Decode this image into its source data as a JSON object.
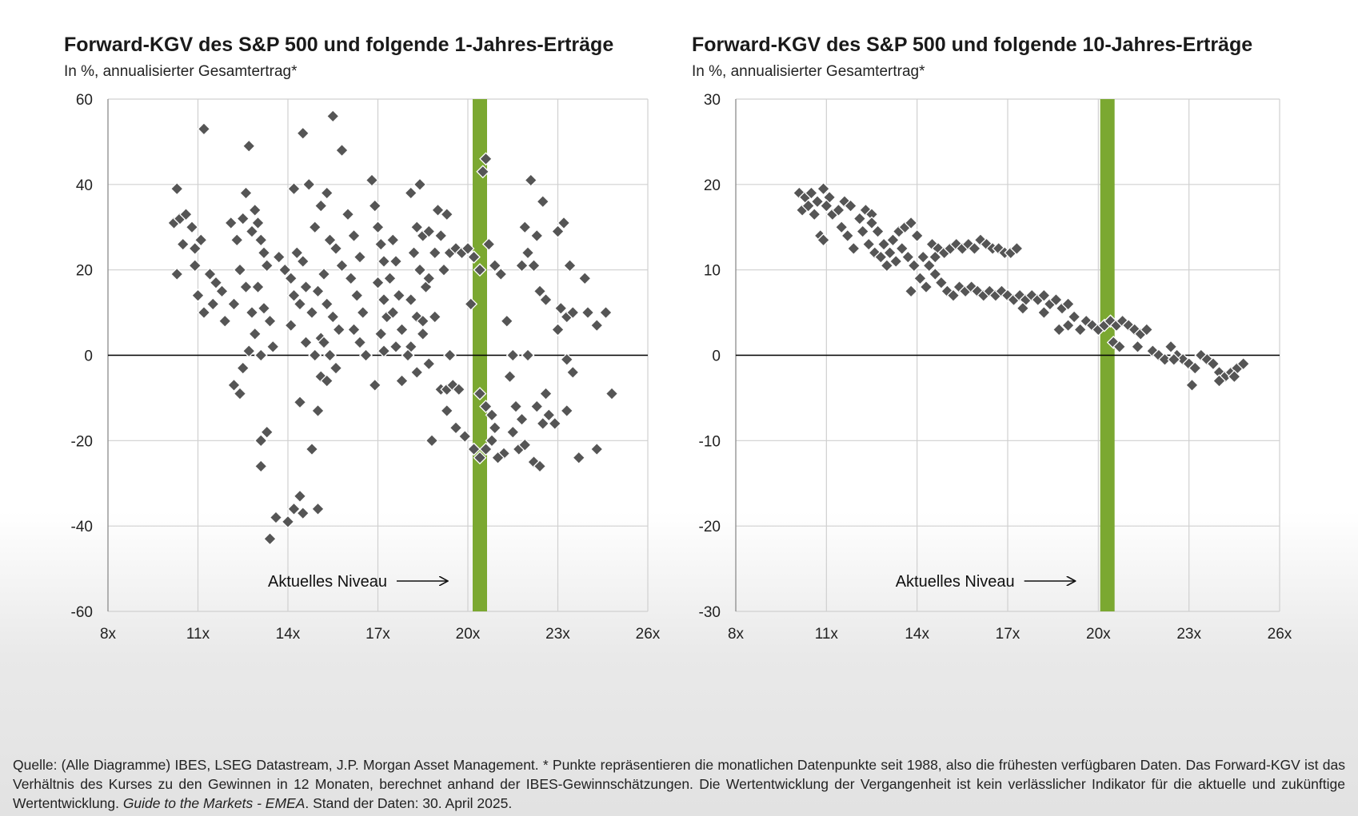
{
  "charts": [
    {
      "title": "Forward-KGV des S&P 500 und folgende 1-Jahres-Erträge",
      "subtitle": "In %, annualisierter Gesamtertrag*",
      "annotation": "Aktuelles Niveau"
    },
    {
      "title": "Forward-KGV des S&P 500 und folgende 10-Jahres-Erträge",
      "subtitle": "In %, annualisierter Gesamtertrag*",
      "annotation": "Aktuelles Niveau"
    }
  ],
  "footnote": {
    "part1": "Quelle: (Alle Diagramme) IBES, LSEG Datastream, J.P. Morgan Asset Management. * Punkte repräsentieren die monatlichen Datenpunkte seit 1988, also die frühesten verfügbaren Daten. Das Forward-KGV ist das Verhältnis des Kurses zu den Gewinnen in 12 Monaten, berechnet anhand der IBES-Gewinnschätzungen. Die Wertentwicklung der Vergangenheit ist kein verlässlicher Indikator für die aktuelle und zukünftige Wertentwicklung.",
    "guide": "Guide to the Markets - EMEA",
    "part2": ". Stand der Daten: 30. April 2025."
  },
  "colors": {
    "marker": "#555555",
    "current_band": "#7ba831",
    "grid": "#d0d0d0",
    "zero_line": "#000000"
  },
  "chart_data": [
    {
      "type": "scatter",
      "title": "Forward-KGV des S&P 500 und folgende 1-Jahres-Erträge",
      "subtitle": "In %, annualisierter Gesamtertrag*",
      "xlim": [
        8,
        26
      ],
      "ylim": [
        -60,
        60
      ],
      "x_ticks": [
        "8x",
        "11x",
        "14x",
        "17x",
        "20x",
        "23x",
        "26x"
      ],
      "y_ticks": [
        "60",
        "40",
        "20",
        "0",
        "-20",
        "-40",
        "-60"
      ],
      "grid": true,
      "current_level": 20.4,
      "annotation": "Aktuelles Niveau",
      "points": [
        [
          10.3,
          39
        ],
        [
          10.2,
          31
        ],
        [
          10.4,
          32
        ],
        [
          10.6,
          33
        ],
        [
          10.8,
          30
        ],
        [
          10.5,
          26
        ],
        [
          10.3,
          19
        ],
        [
          10.9,
          25
        ],
        [
          11.1,
          27
        ],
        [
          10.9,
          21
        ],
        [
          11.0,
          14
        ],
        [
          11.2,
          10
        ],
        [
          11.4,
          19
        ],
        [
          11.6,
          17
        ],
        [
          11.8,
          15
        ],
        [
          11.5,
          12
        ],
        [
          11.9,
          8
        ],
        [
          11.2,
          53
        ],
        [
          12.1,
          31
        ],
        [
          12.3,
          27
        ],
        [
          12.5,
          32
        ],
        [
          12.4,
          20
        ],
        [
          12.6,
          16
        ],
        [
          12.2,
          12
        ],
        [
          12.8,
          10
        ],
        [
          12.6,
          38
        ],
        [
          12.8,
          29
        ],
        [
          12.7,
          49
        ],
        [
          12.9,
          34
        ],
        [
          13.0,
          31
        ],
        [
          13.1,
          27
        ],
        [
          13.2,
          24
        ],
        [
          13.3,
          21
        ],
        [
          13.0,
          16
        ],
        [
          13.2,
          11
        ],
        [
          13.4,
          8
        ],
        [
          12.9,
          5
        ],
        [
          12.7,
          1
        ],
        [
          13.1,
          0
        ],
        [
          13.5,
          2
        ],
        [
          12.2,
          -7
        ],
        [
          12.4,
          -9
        ],
        [
          12.5,
          -3
        ],
        [
          13.1,
          -20
        ],
        [
          13.3,
          -18
        ],
        [
          13.1,
          -26
        ],
        [
          13.4,
          -43
        ],
        [
          13.6,
          -38
        ],
        [
          14.0,
          -39
        ],
        [
          14.2,
          -36
        ],
        [
          14.4,
          -33
        ],
        [
          14.5,
          -37
        ],
        [
          15.0,
          -36
        ],
        [
          14.4,
          -11
        ],
        [
          14.8,
          -22
        ],
        [
          15.0,
          -13
        ],
        [
          13.7,
          23
        ],
        [
          13.9,
          20
        ],
        [
          14.1,
          18
        ],
        [
          14.3,
          24
        ],
        [
          14.5,
          22
        ],
        [
          14.2,
          14
        ],
        [
          14.4,
          12
        ],
        [
          14.6,
          16
        ],
        [
          14.8,
          10
        ],
        [
          14.1,
          7
        ],
        [
          14.6,
          3
        ],
        [
          14.9,
          0
        ],
        [
          15.1,
          4
        ],
        [
          14.2,
          39
        ],
        [
          14.5,
          52
        ],
        [
          14.7,
          40
        ],
        [
          14.9,
          30
        ],
        [
          15.1,
          35
        ],
        [
          15.3,
          38
        ],
        [
          15.4,
          27
        ],
        [
          15.6,
          25
        ],
        [
          15.8,
          21
        ],
        [
          15.2,
          19
        ],
        [
          15.0,
          15
        ],
        [
          15.3,
          12
        ],
        [
          15.5,
          9
        ],
        [
          15.7,
          6
        ],
        [
          15.2,
          3
        ],
        [
          15.4,
          0
        ],
        [
          15.6,
          -3
        ],
        [
          15.1,
          -5
        ],
        [
          15.3,
          -6
        ],
        [
          15.5,
          56
        ],
        [
          15.8,
          48
        ],
        [
          16.0,
          33
        ],
        [
          16.2,
          28
        ],
        [
          16.4,
          23
        ],
        [
          16.1,
          18
        ],
        [
          16.3,
          14
        ],
        [
          16.5,
          10
        ],
        [
          16.2,
          6
        ],
        [
          16.4,
          3
        ],
        [
          16.6,
          0
        ],
        [
          16.8,
          41
        ],
        [
          16.9,
          35
        ],
        [
          17.0,
          30
        ],
        [
          17.1,
          26
        ],
        [
          17.2,
          22
        ],
        [
          17.0,
          17
        ],
        [
          17.2,
          13
        ],
        [
          17.3,
          9
        ],
        [
          17.1,
          5
        ],
        [
          17.2,
          1
        ],
        [
          17.5,
          27
        ],
        [
          17.6,
          22
        ],
        [
          17.4,
          18
        ],
        [
          17.7,
          14
        ],
        [
          17.5,
          10
        ],
        [
          17.8,
          6
        ],
        [
          17.6,
          2
        ],
        [
          16.9,
          -7
        ],
        [
          17.8,
          -6
        ],
        [
          18.1,
          38
        ],
        [
          18.3,
          30
        ],
        [
          18.5,
          28
        ],
        [
          18.2,
          24
        ],
        [
          18.4,
          20
        ],
        [
          18.6,
          16
        ],
        [
          18.1,
          13
        ],
        [
          18.3,
          9
        ],
        [
          18.5,
          5
        ],
        [
          18.1,
          2
        ],
        [
          18.0,
          0
        ],
        [
          18.4,
          40
        ],
        [
          18.7,
          29
        ],
        [
          18.9,
          24
        ],
        [
          18.7,
          18
        ],
        [
          18.5,
          8
        ],
        [
          18.9,
          9
        ],
        [
          18.3,
          -4
        ],
        [
          18.7,
          -2
        ],
        [
          18.8,
          -20
        ],
        [
          19.0,
          34
        ],
        [
          19.3,
          33
        ],
        [
          19.1,
          28
        ],
        [
          19.4,
          24
        ],
        [
          19.2,
          20
        ],
        [
          19.6,
          25
        ],
        [
          19.8,
          24
        ],
        [
          20.0,
          25
        ],
        [
          20.2,
          23
        ],
        [
          20.4,
          20
        ],
        [
          20.1,
          12
        ],
        [
          19.1,
          -8
        ],
        [
          19.3,
          -8
        ],
        [
          19.5,
          -7
        ],
        [
          19.7,
          -8
        ],
        [
          19.4,
          0
        ],
        [
          19.3,
          -13
        ],
        [
          19.6,
          -17
        ],
        [
          19.9,
          -19
        ],
        [
          20.2,
          -22
        ],
        [
          20.4,
          -24
        ],
        [
          20.6,
          -22
        ],
        [
          20.8,
          -20
        ],
        [
          20.4,
          -9
        ],
        [
          20.6,
          -12
        ],
        [
          20.8,
          -14
        ],
        [
          20.6,
          46
        ],
        [
          20.5,
          43
        ],
        [
          20.7,
          26
        ],
        [
          20.9,
          21
        ],
        [
          21.1,
          19
        ],
        [
          21.3,
          8
        ],
        [
          21.5,
          0
        ],
        [
          21.4,
          -5
        ],
        [
          21.6,
          -12
        ],
        [
          21.8,
          -15
        ],
        [
          21.5,
          -18
        ],
        [
          21.7,
          -22
        ],
        [
          21.9,
          -21
        ],
        [
          21.2,
          -23
        ],
        [
          20.9,
          -17
        ],
        [
          21.0,
          -24
        ],
        [
          21.8,
          21
        ],
        [
          22.0,
          24
        ],
        [
          21.9,
          30
        ],
        [
          22.1,
          41
        ],
        [
          22.3,
          28
        ],
        [
          22.5,
          36
        ],
        [
          22.2,
          21
        ],
        [
          22.4,
          15
        ],
        [
          22.6,
          13
        ],
        [
          22.0,
          0
        ],
        [
          22.3,
          -12
        ],
        [
          22.5,
          -16
        ],
        [
          22.7,
          -14
        ],
        [
          22.2,
          -25
        ],
        [
          22.4,
          -26
        ],
        [
          22.6,
          -9
        ],
        [
          23.0,
          29
        ],
        [
          23.2,
          31
        ],
        [
          23.4,
          21
        ],
        [
          23.1,
          11
        ],
        [
          23.3,
          9
        ],
        [
          23.5,
          10
        ],
        [
          23.0,
          6
        ],
        [
          23.3,
          -1
        ],
        [
          23.5,
          -4
        ],
        [
          23.3,
          -13
        ],
        [
          22.9,
          -16
        ],
        [
          23.7,
          -24
        ],
        [
          23.9,
          18
        ],
        [
          24.0,
          10
        ],
        [
          24.3,
          7
        ],
        [
          24.6,
          10
        ],
        [
          24.3,
          -22
        ],
        [
          24.8,
          -9
        ]
      ]
    },
    {
      "type": "scatter",
      "title": "Forward-KGV des S&P 500 und folgende 10-Jahres-Erträge",
      "subtitle": "In %, annualisierter Gesamtertrag*",
      "xlim": [
        8,
        26
      ],
      "ylim": [
        -30,
        30
      ],
      "x_ticks": [
        "8x",
        "11x",
        "14x",
        "17x",
        "20x",
        "23x",
        "26x"
      ],
      "y_ticks": [
        "30",
        "20",
        "10",
        "0",
        "-10",
        "-20",
        "-30"
      ],
      "grid": true,
      "current_level": 20.3,
      "annotation": "Aktuelles Niveau",
      "points": [
        [
          10.1,
          19
        ],
        [
          10.3,
          18.5
        ],
        [
          10.5,
          19
        ],
        [
          10.7,
          18
        ],
        [
          10.9,
          19.5
        ],
        [
          11.1,
          18.5
        ],
        [
          10.2,
          17
        ],
        [
          10.4,
          17.5
        ],
        [
          10.6,
          16.5
        ],
        [
          10.8,
          14
        ],
        [
          10.9,
          13.5
        ],
        [
          11.0,
          17.5
        ],
        [
          11.2,
          16.5
        ],
        [
          11.4,
          17
        ],
        [
          11.6,
          18
        ],
        [
          11.8,
          17.5
        ],
        [
          11.5,
          15
        ],
        [
          11.7,
          14
        ],
        [
          11.9,
          12.5
        ],
        [
          12.1,
          16
        ],
        [
          12.3,
          17
        ],
        [
          12.5,
          16.5
        ],
        [
          12.2,
          14.5
        ],
        [
          12.4,
          13
        ],
        [
          12.6,
          12
        ],
        [
          12.8,
          11.5
        ],
        [
          12.5,
          15.5
        ],
        [
          12.7,
          14.5
        ],
        [
          12.9,
          13
        ],
        [
          13.1,
          12
        ],
        [
          13.3,
          11
        ],
        [
          13.0,
          10.5
        ],
        [
          13.2,
          13.5
        ],
        [
          13.4,
          14.5
        ],
        [
          13.6,
          15
        ],
        [
          13.8,
          15.5
        ],
        [
          14.0,
          14
        ],
        [
          13.5,
          12.5
        ],
        [
          13.7,
          11.5
        ],
        [
          13.9,
          10.5
        ],
        [
          14.1,
          9
        ],
        [
          14.3,
          8
        ],
        [
          13.8,
          7.5
        ],
        [
          14.5,
          13
        ],
        [
          14.7,
          12.5
        ],
        [
          14.2,
          11.5
        ],
        [
          14.4,
          10.5
        ],
        [
          14.6,
          9.5
        ],
        [
          14.8,
          8.5
        ],
        [
          15.0,
          7.5
        ],
        [
          15.2,
          7
        ],
        [
          14.6,
          11.5
        ],
        [
          14.9,
          12
        ],
        [
          15.1,
          12.5
        ],
        [
          15.3,
          13
        ],
        [
          15.5,
          12.5
        ],
        [
          15.7,
          13
        ],
        [
          15.9,
          12.5
        ],
        [
          16.1,
          13.5
        ],
        [
          16.3,
          13
        ],
        [
          16.5,
          12.5
        ],
        [
          16.7,
          12.5
        ],
        [
          16.9,
          12
        ],
        [
          17.1,
          12
        ],
        [
          17.3,
          12.5
        ],
        [
          15.4,
          8
        ],
        [
          15.6,
          7.5
        ],
        [
          15.8,
          8
        ],
        [
          16.0,
          7.5
        ],
        [
          16.2,
          7
        ],
        [
          16.4,
          7.5
        ],
        [
          16.6,
          7
        ],
        [
          16.8,
          7.5
        ],
        [
          17.0,
          7
        ],
        [
          17.2,
          6.5
        ],
        [
          17.4,
          7
        ],
        [
          17.6,
          6.5
        ],
        [
          17.5,
          5.5
        ],
        [
          17.8,
          7
        ],
        [
          18.0,
          6.5
        ],
        [
          18.2,
          7
        ],
        [
          18.4,
          6
        ],
        [
          18.6,
          6.5
        ],
        [
          18.8,
          5.5
        ],
        [
          19.0,
          6
        ],
        [
          18.2,
          5
        ],
        [
          18.7,
          3
        ],
        [
          19.0,
          3.5
        ],
        [
          19.2,
          4.5
        ],
        [
          19.4,
          3
        ],
        [
          19.6,
          4
        ],
        [
          19.8,
          3.5
        ],
        [
          20.0,
          3
        ],
        [
          20.2,
          3.5
        ],
        [
          20.4,
          4
        ],
        [
          20.6,
          3.5
        ],
        [
          20.8,
          4
        ],
        [
          21.0,
          3.5
        ],
        [
          21.2,
          3
        ],
        [
          21.4,
          2.5
        ],
        [
          21.6,
          3
        ],
        [
          20.5,
          1.5
        ],
        [
          20.7,
          1
        ],
        [
          21.3,
          1
        ],
        [
          21.8,
          0.5
        ],
        [
          22.0,
          0
        ],
        [
          22.2,
          -0.5
        ],
        [
          22.4,
          1
        ],
        [
          22.6,
          0
        ],
        [
          22.8,
          -0.5
        ],
        [
          23.0,
          -1
        ],
        [
          23.2,
          -1.5
        ],
        [
          23.4,
          0
        ],
        [
          23.6,
          -0.5
        ],
        [
          23.8,
          -1
        ],
        [
          24.0,
          -2
        ],
        [
          24.2,
          -2.5
        ],
        [
          24.4,
          -2
        ],
        [
          24.6,
          -1.5
        ],
        [
          24.8,
          -1
        ],
        [
          22.5,
          -0.5
        ],
        [
          23.1,
          -3.5
        ],
        [
          24.0,
          -3
        ],
        [
          24.5,
          -2.5
        ]
      ]
    }
  ]
}
